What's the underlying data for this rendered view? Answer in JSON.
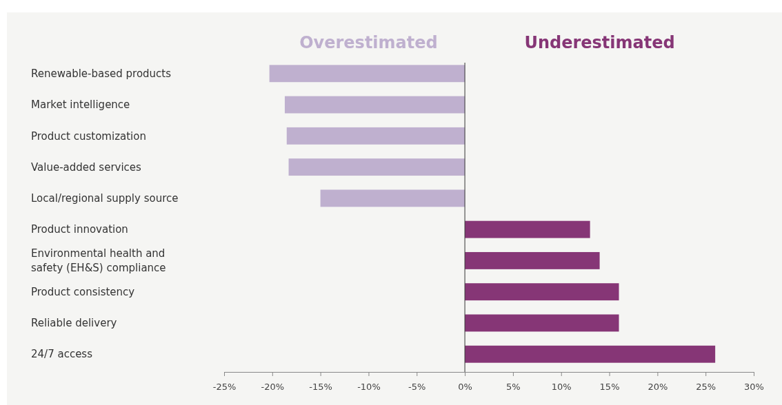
{
  "chart_data": {
    "type": "bar",
    "orientation": "horizontal",
    "categories": [
      "Renewable-based products",
      "Market intelligence",
      "Product customization",
      "Value-added services",
      "Local/regional supply source",
      "Product innovation",
      "Environmental health and safety (EH&S) compliance",
      "Product consistency",
      "Reliable delivery",
      "24/7 access"
    ],
    "series": [
      {
        "name": "Overestimated",
        "color": "#bfb0cf",
        "values": [
          -20.3,
          -18.7,
          -18.5,
          -18.3,
          -15.0,
          null,
          null,
          null,
          null,
          null
        ]
      },
      {
        "name": "Underestimated",
        "color": "#863676",
        "values": [
          null,
          null,
          null,
          null,
          null,
          13,
          14,
          16,
          16,
          26
        ]
      }
    ],
    "xlim": [
      -25,
      30
    ],
    "xticks": [
      {
        "value": -25,
        "label": "-25%"
      },
      {
        "value": -20,
        "label": "-20%"
      },
      {
        "value": -15,
        "label": "-15%"
      },
      {
        "value": -10,
        "label": "-10%"
      },
      {
        "value": -5,
        "label": "-5%"
      },
      {
        "value": 0,
        "label": "0%"
      },
      {
        "value": 5,
        "label": "5%"
      },
      {
        "value": 10,
        "label": "10%"
      },
      {
        "value": 15,
        "label": "15%"
      },
      {
        "value": 20,
        "label": "20%"
      },
      {
        "value": 25,
        "label": "25%"
      },
      {
        "value": 30,
        "label": "30%"
      }
    ],
    "legend": "top"
  }
}
